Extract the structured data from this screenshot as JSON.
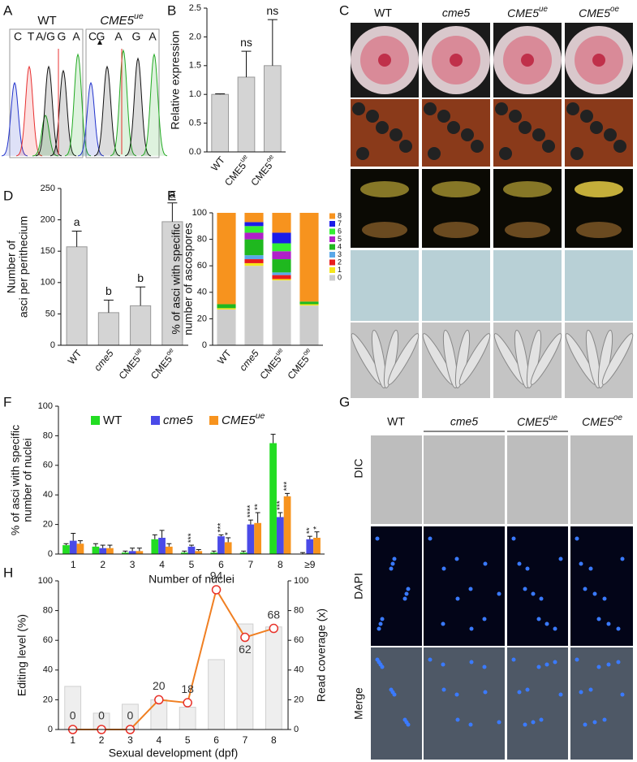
{
  "panels": {
    "letters": [
      "A",
      "B",
      "C",
      "D",
      "E",
      "F",
      "G",
      "H"
    ]
  },
  "panel_a": {
    "titles": [
      "WT",
      "CME5ue"
    ],
    "wt_bases": [
      "C",
      "T",
      "A/G",
      "G",
      "A"
    ],
    "ue_bases": [
      "C",
      "G",
      "A",
      "G",
      "A"
    ]
  },
  "panel_c": {
    "columns": [
      "WT",
      "cme5",
      "CME5ue",
      "CME5oe"
    ]
  },
  "panel_g": {
    "columns": [
      "WT",
      "cme5",
      "CME5ue",
      "CME5oe"
    ],
    "rows": [
      "DIC",
      "DAPI",
      "Merge"
    ]
  },
  "chart_data": [
    {
      "type": "bar",
      "ylabel": [
        "Relative expression"
      ],
      "categories": [
        "WT",
        "CME5ue",
        "CME5oe"
      ],
      "values": [
        1.0,
        1.3,
        1.5
      ],
      "errors": [
        0.01,
        0.45,
        0.8
      ],
      "annotations": [
        null,
        "ns",
        "ns"
      ],
      "color": "#d4d4d4",
      "ylim": [
        0,
        2.5
      ],
      "yticks": [
        {
          "value": 0,
          "label": "0.0"
        },
        {
          "value": 0.5,
          "label": "0.5"
        },
        {
          "value": 1,
          "label": "1.0"
        },
        {
          "value": 1.5,
          "label": "1.5"
        },
        {
          "value": 2,
          "label": "2.0"
        },
        {
          "value": 2.5,
          "label": "2.5"
        }
      ]
    },
    {
      "type": "bar",
      "ylabel": [
        "Number of",
        "asci per perithecium"
      ],
      "categories": [
        "WT",
        "cme5",
        "CME5ue",
        "CME5oe"
      ],
      "values": [
        157,
        52,
        63,
        197
      ],
      "errors": [
        25,
        20,
        30,
        30
      ],
      "annotations": [
        "a",
        "b",
        "b",
        "a"
      ],
      "color": "#d4d4d4",
      "ylim": [
        0,
        250
      ],
      "yticks": [
        0,
        50,
        100,
        150,
        200,
        250
      ]
    },
    {
      "type": "stacked",
      "ylabel": [
        "% of asci with specific",
        "number of ascospores"
      ],
      "categories": [
        "WT",
        "cme5",
        "CME5ue",
        "CME5oe"
      ],
      "series": [
        {
          "name": "0",
          "color": "#cccccc",
          "values": [
            27,
            60,
            49,
            30
          ]
        },
        {
          "name": "1",
          "color": "#f5e61c",
          "values": [
            1,
            2,
            1,
            1
          ]
        },
        {
          "name": "2",
          "color": "#e81c1c",
          "values": [
            0,
            3,
            3,
            0
          ]
        },
        {
          "name": "3",
          "color": "#5aa8e8",
          "values": [
            0,
            3,
            2,
            0
          ]
        },
        {
          "name": "4",
          "color": "#1fb81f",
          "values": [
            3,
            12,
            10,
            2
          ]
        },
        {
          "name": "5",
          "color": "#b020c8",
          "values": [
            0,
            5,
            6,
            0
          ]
        },
        {
          "name": "6",
          "color": "#33ee33",
          "values": [
            0,
            5,
            6,
            0
          ]
        },
        {
          "name": "7",
          "color": "#1c1ce8",
          "values": [
            0,
            3,
            8,
            0
          ]
        },
        {
          "name": "8",
          "color": "#f7931e",
          "values": [
            69,
            7,
            15,
            67
          ]
        }
      ],
      "ylim": [
        0,
        100
      ],
      "yticks": [
        0,
        20,
        40,
        60,
        80,
        100
      ]
    },
    {
      "type": "grouped",
      "ylabel": [
        "% of asci with specific",
        "number of nuclei"
      ],
      "xlabel": "Number of nuclei",
      "categories": [
        "1",
        "2",
        "3",
        "4",
        "5",
        "6",
        "7",
        "8",
        "≥9"
      ],
      "series": [
        {
          "name": "WT",
          "color": "#22dd22",
          "values": [
            6,
            5,
            1,
            10,
            1,
            1,
            1,
            75,
            0
          ],
          "errors": [
            1,
            2,
            1,
            3,
            1,
            1,
            1,
            6,
            1
          ],
          "stars": [
            null,
            null,
            null,
            null,
            null,
            null,
            null,
            null,
            null
          ]
        },
        {
          "name": "cme5",
          "color": "#4a4ae8",
          "values": [
            9,
            4,
            2,
            11,
            5,
            12,
            20,
            25,
            10
          ],
          "errors": [
            5,
            2,
            2,
            5,
            1,
            1,
            3,
            3,
            2
          ],
          "stars": [
            null,
            null,
            null,
            null,
            "***",
            "***",
            "****",
            "***",
            "**"
          ]
        },
        {
          "name": "CME5ue",
          "color": "#f7931e",
          "values": [
            7,
            4,
            2,
            5,
            2,
            8,
            21,
            39,
            11
          ],
          "errors": [
            2,
            2,
            2,
            2,
            1,
            3,
            7,
            2,
            4
          ],
          "stars": [
            null,
            null,
            null,
            null,
            null,
            "*",
            "**",
            "***",
            "*"
          ]
        }
      ],
      "ylim": [
        0,
        100
      ],
      "yticks": [
        0,
        20,
        40,
        60,
        80,
        100
      ]
    },
    {
      "type": "combo",
      "ylabel": [
        "Editing level (%)"
      ],
      "y2label": "Read coverage (x)",
      "xlabel": "Sexual development (dpf)",
      "categories": [
        "1",
        "2",
        "3",
        "4",
        "5",
        "6",
        "7",
        "8"
      ],
      "series": [
        {
          "axis": "y2",
          "color": "#eeeeee",
          "values": [
            29,
            11,
            17,
            20,
            15,
            47,
            71,
            69
          ]
        },
        {
          "color": "#f07f22",
          "marker_color": "#e8322a",
          "values": [
            0,
            0,
            0,
            20,
            18,
            94,
            62,
            68
          ]
        }
      ],
      "ylim": [
        0,
        100
      ],
      "yticks": [
        0,
        20,
        40,
        60,
        80,
        100
      ],
      "y2lim": [
        0,
        100
      ],
      "y2ticks": [
        0,
        20,
        40,
        60,
        80,
        100
      ]
    }
  ]
}
